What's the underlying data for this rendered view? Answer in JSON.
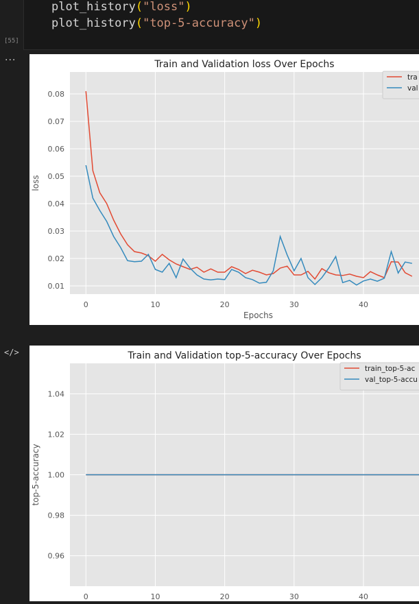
{
  "cell": {
    "execution_count": "[55]",
    "code_lines": [
      {
        "fn": "plot_history",
        "arg": "\"loss\""
      },
      {
        "fn": "plot_history",
        "arg": "\"top-5-accuracy\""
      }
    ],
    "output_menu_icon": "ellipsis-icon",
    "code_toggle_icon": "code-toggle-icon",
    "code_toggle_glyph": "</>",
    "ellipsis_glyph": "···"
  },
  "colors": {
    "train": "#e24a33",
    "val": "#348abd",
    "plot_bg": "#e5e5e5",
    "grid": "#ffffff"
  },
  "chart_data": [
    {
      "type": "line",
      "title": "Train and Validation loss Over Epochs",
      "xlabel": "Epochs",
      "ylabel": "loss",
      "xlim": [
        -2.3,
        48
      ],
      "ylim": [
        0.007,
        0.088
      ],
      "xticks": [
        0,
        10,
        20,
        30,
        40
      ],
      "yticks": [
        0.01,
        0.02,
        0.03,
        0.04,
        0.05,
        0.06,
        0.07,
        0.08
      ],
      "ytick_labels": [
        "0.01",
        "0.02",
        "0.03",
        "0.04",
        "0.05",
        "0.06",
        "0.07",
        "0.08"
      ],
      "grid": true,
      "legend_position": "top-right",
      "legend_labels": [
        "tra",
        "val"
      ],
      "series": [
        {
          "key": "train",
          "values": [
            0.081,
            0.052,
            0.044,
            0.04,
            0.034,
            0.029,
            0.025,
            0.0225,
            0.022,
            0.021,
            0.019,
            0.0215,
            0.0195,
            0.018,
            0.017,
            0.016,
            0.0168,
            0.015,
            0.0162,
            0.015,
            0.015,
            0.017,
            0.016,
            0.0145,
            0.0157,
            0.015,
            0.014,
            0.0145,
            0.0165,
            0.0172,
            0.014,
            0.014,
            0.0153,
            0.0125,
            0.0163,
            0.0148,
            0.014,
            0.0138,
            0.0143,
            0.0135,
            0.013,
            0.0152,
            0.014,
            0.013,
            0.0188,
            0.0187,
            0.0148,
            0.0135
          ]
        },
        {
          "key": "val",
          "values": [
            0.054,
            0.042,
            0.0375,
            0.0335,
            0.028,
            0.024,
            0.0192,
            0.0188,
            0.019,
            0.0215,
            0.016,
            0.015,
            0.0182,
            0.013,
            0.0198,
            0.0165,
            0.014,
            0.0125,
            0.0122,
            0.0125,
            0.0123,
            0.016,
            0.015,
            0.013,
            0.0123,
            0.011,
            0.0113,
            0.0155,
            0.028,
            0.0213,
            0.0155,
            0.02,
            0.013,
            0.0105,
            0.013,
            0.0165,
            0.0207,
            0.0112,
            0.012,
            0.0103,
            0.0118,
            0.0125,
            0.0117,
            0.0128,
            0.0225,
            0.0147,
            0.0187,
            0.0182
          ]
        }
      ]
    },
    {
      "type": "line",
      "title": "Train and Validation top-5-accuracy Over Epochs",
      "xlabel": "",
      "ylabel": "top-5-accuracy",
      "xlim": [
        -2.3,
        48
      ],
      "ylim": [
        0.945,
        1.055
      ],
      "xticks": [
        0,
        10,
        20,
        30,
        40
      ],
      "yticks": [
        0.96,
        0.98,
        1.0,
        1.02,
        1.04
      ],
      "ytick_labels": [
        "0.96",
        "0.98",
        "1.00",
        "1.02",
        "1.04"
      ],
      "grid": true,
      "legend_position": "top-right",
      "legend_labels": [
        "train_top-5-ac",
        "val_top-5-accu"
      ],
      "series": [
        {
          "key": "train",
          "constant": 1.0,
          "from": 0,
          "to": 48
        },
        {
          "key": "val",
          "constant": 1.0,
          "from": 0,
          "to": 48
        }
      ]
    }
  ]
}
